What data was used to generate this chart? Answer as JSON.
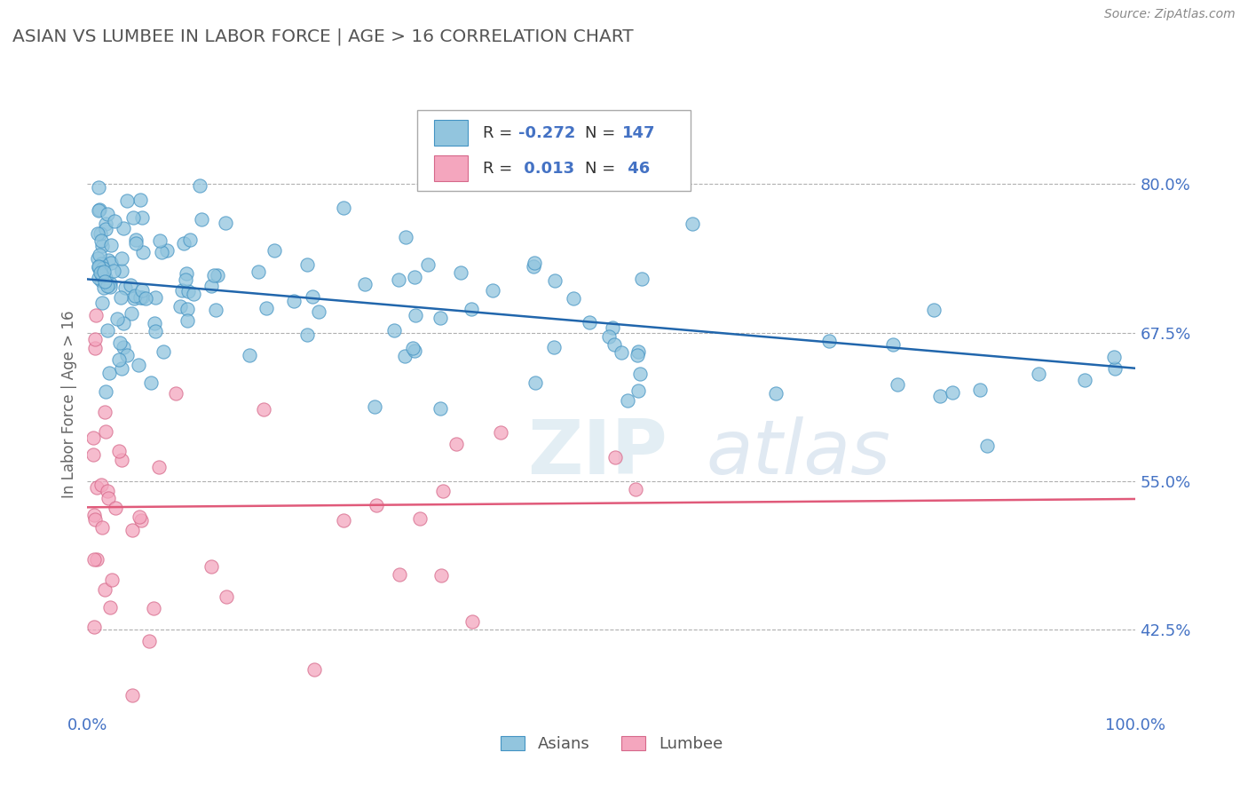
{
  "title": "ASIAN VS LUMBEE IN LABOR FORCE | AGE > 16 CORRELATION CHART",
  "source_text": "Source: ZipAtlas.com",
  "ylabel": "In Labor Force | Age > 16",
  "watermark_zip": "ZIP",
  "watermark_atlas": "atlas",
  "xlim": [
    0.0,
    1.0
  ],
  "ylim": [
    0.355,
    0.875
  ],
  "yticks": [
    0.425,
    0.55,
    0.675,
    0.8
  ],
  "ytick_labels": [
    "42.5%",
    "55.0%",
    "67.5%",
    "80.0%"
  ],
  "xtick_labels": [
    "0.0%",
    "100.0%"
  ],
  "asian_color": "#92c5de",
  "asian_edge_color": "#4393c3",
  "lumbee_color": "#f4a6be",
  "lumbee_edge_color": "#d6688a",
  "asian_line_color": "#2166ac",
  "lumbee_line_color": "#e05a7a",
  "grid_color": "#b0b0b0",
  "title_color": "#555555",
  "axis_label_color": "#666666",
  "tick_color": "#4472c4",
  "legend_r_color": "#4472c4",
  "background_color": "#ffffff",
  "asian_R": -0.272,
  "asian_N": 147,
  "lumbee_R": 0.013,
  "lumbee_N": 46,
  "asian_trend_x0": 0.0,
  "asian_trend_x1": 1.0,
  "asian_trend_y0": 0.72,
  "asian_trend_y1": 0.645,
  "lumbee_trend_x0": 0.0,
  "lumbee_trend_x1": 1.0,
  "lumbee_trend_y0": 0.528,
  "lumbee_trend_y1": 0.535
}
